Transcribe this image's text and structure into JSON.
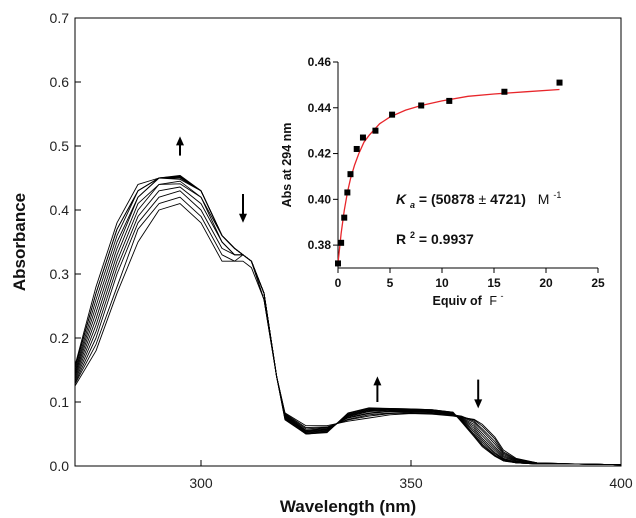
{
  "chart_data": [
    {
      "type": "line",
      "xlabel": "Wavelength (nm)",
      "ylabel": "Absorbance",
      "xlim": [
        270,
        400
      ],
      "ylim": [
        0.0,
        0.7
      ],
      "xticks": [
        300,
        350,
        400
      ],
      "xtick_labels": [
        "300",
        "350",
        "400"
      ],
      "yticks": [
        0.0,
        0.1,
        0.2,
        0.3,
        0.4,
        0.5,
        0.6,
        0.7
      ],
      "ytick_labels": [
        "0.0",
        "0.1",
        "0.2",
        "0.3",
        "0.4",
        "0.5",
        "0.6",
        "0.7"
      ],
      "grid": false,
      "line_color": "#000000",
      "x": [
        270,
        275,
        280,
        285,
        290,
        295,
        300,
        305,
        308,
        310,
        312,
        315,
        318,
        320,
        325,
        330,
        335,
        340,
        345,
        350,
        355,
        360,
        362,
        365,
        367,
        370,
        372,
        375,
        380,
        390,
        400
      ],
      "series": [
        {
          "values": [
            0.125,
            0.18,
            0.27,
            0.35,
            0.4,
            0.41,
            0.38,
            0.32,
            0.32,
            0.32,
            0.31,
            0.26,
            0.14,
            0.083,
            0.063,
            0.063,
            0.07,
            0.075,
            0.08,
            0.082,
            0.081,
            0.078,
            0.076,
            0.073,
            0.065,
            0.045,
            0.025,
            0.012,
            0.005,
            0.003,
            0.002
          ]
        },
        {
          "values": [
            0.128,
            0.19,
            0.28,
            0.37,
            0.41,
            0.42,
            0.39,
            0.33,
            0.32,
            0.33,
            0.32,
            0.26,
            0.14,
            0.082,
            0.06,
            0.061,
            0.072,
            0.078,
            0.082,
            0.083,
            0.082,
            0.079,
            0.077,
            0.072,
            0.062,
            0.042,
            0.022,
            0.011,
            0.005,
            0.003,
            0.002
          ]
        },
        {
          "values": [
            0.13,
            0.2,
            0.3,
            0.38,
            0.42,
            0.43,
            0.4,
            0.34,
            0.33,
            0.33,
            0.32,
            0.26,
            0.14,
            0.081,
            0.058,
            0.06,
            0.073,
            0.08,
            0.083,
            0.084,
            0.083,
            0.08,
            0.078,
            0.07,
            0.058,
            0.038,
            0.02,
            0.01,
            0.005,
            0.003,
            0.002
          ]
        },
        {
          "values": [
            0.133,
            0.21,
            0.31,
            0.39,
            0.43,
            0.436,
            0.41,
            0.35,
            0.33,
            0.33,
            0.32,
            0.27,
            0.14,
            0.08,
            0.056,
            0.059,
            0.075,
            0.082,
            0.085,
            0.085,
            0.084,
            0.08,
            0.077,
            0.068,
            0.055,
            0.034,
            0.018,
            0.009,
            0.004,
            0.003,
            0.002
          ]
        },
        {
          "values": [
            0.136,
            0.22,
            0.32,
            0.4,
            0.44,
            0.441,
            0.42,
            0.35,
            0.33,
            0.33,
            0.32,
            0.27,
            0.14,
            0.079,
            0.055,
            0.058,
            0.076,
            0.083,
            0.086,
            0.086,
            0.085,
            0.081,
            0.076,
            0.065,
            0.051,
            0.03,
            0.016,
            0.008,
            0.004,
            0.003,
            0.002
          ]
        },
        {
          "values": [
            0.139,
            0.23,
            0.33,
            0.41,
            0.44,
            0.445,
            0.42,
            0.36,
            0.34,
            0.33,
            0.32,
            0.27,
            0.14,
            0.078,
            0.054,
            0.057,
            0.077,
            0.085,
            0.087,
            0.086,
            0.085,
            0.081,
            0.075,
            0.062,
            0.047,
            0.027,
            0.014,
            0.007,
            0.004,
            0.003,
            0.002
          ]
        },
        {
          "values": [
            0.142,
            0.24,
            0.34,
            0.42,
            0.45,
            0.448,
            0.43,
            0.36,
            0.34,
            0.33,
            0.32,
            0.27,
            0.14,
            0.077,
            0.053,
            0.056,
            0.078,
            0.086,
            0.088,
            0.087,
            0.086,
            0.082,
            0.074,
            0.059,
            0.043,
            0.024,
            0.012,
            0.006,
            0.004,
            0.003,
            0.002
          ]
        },
        {
          "values": [
            0.145,
            0.25,
            0.35,
            0.42,
            0.45,
            0.45,
            0.43,
            0.36,
            0.34,
            0.33,
            0.32,
            0.27,
            0.14,
            0.076,
            0.052,
            0.055,
            0.079,
            0.087,
            0.088,
            0.087,
            0.086,
            0.082,
            0.073,
            0.056,
            0.04,
            0.021,
            0.011,
            0.006,
            0.003,
            0.003,
            0.002
          ]
        },
        {
          "values": [
            0.148,
            0.26,
            0.36,
            0.43,
            0.45,
            0.451,
            0.43,
            0.36,
            0.34,
            0.33,
            0.32,
            0.27,
            0.14,
            0.075,
            0.051,
            0.054,
            0.08,
            0.088,
            0.089,
            0.088,
            0.087,
            0.083,
            0.072,
            0.053,
            0.037,
            0.019,
            0.01,
            0.005,
            0.003,
            0.003,
            0.002
          ]
        },
        {
          "values": [
            0.152,
            0.27,
            0.37,
            0.43,
            0.45,
            0.452,
            0.43,
            0.36,
            0.34,
            0.33,
            0.32,
            0.27,
            0.14,
            0.074,
            0.05,
            0.053,
            0.081,
            0.089,
            0.089,
            0.088,
            0.087,
            0.083,
            0.071,
            0.05,
            0.034,
            0.017,
            0.009,
            0.005,
            0.003,
            0.003,
            0.002
          ]
        },
        {
          "values": [
            0.155,
            0.27,
            0.37,
            0.43,
            0.45,
            0.453,
            0.43,
            0.36,
            0.34,
            0.33,
            0.32,
            0.27,
            0.14,
            0.073,
            0.05,
            0.053,
            0.082,
            0.09,
            0.09,
            0.089,
            0.088,
            0.084,
            0.07,
            0.048,
            0.032,
            0.016,
            0.008,
            0.005,
            0.003,
            0.003,
            0.002
          ]
        },
        {
          "values": [
            0.157,
            0.28,
            0.38,
            0.44,
            0.45,
            0.454,
            0.43,
            0.36,
            0.34,
            0.33,
            0.32,
            0.27,
            0.14,
            0.072,
            0.05,
            0.052,
            0.083,
            0.091,
            0.09,
            0.089,
            0.088,
            0.084,
            0.069,
            0.046,
            0.03,
            0.015,
            0.008,
            0.005,
            0.003,
            0.003,
            0.002
          ]
        }
      ],
      "annotations": [
        {
          "type": "arrow",
          "direction": "up",
          "x": 295,
          "y_from": 0.485,
          "y_to": 0.515
        },
        {
          "type": "arrow",
          "direction": "down",
          "x": 310,
          "y_from": 0.425,
          "y_to": 0.38
        },
        {
          "type": "arrow",
          "direction": "up",
          "x": 342,
          "y_from": 0.1,
          "y_to": 0.14
        },
        {
          "type": "arrow",
          "direction": "down",
          "x": 366,
          "y_from": 0.135,
          "y_to": 0.09
        }
      ]
    },
    {
      "type": "scatter",
      "xlabel": "Equiv of",
      "xlabel_symbol": "F",
      "xlabel_superscript": "-",
      "ylabel": "Abs at 294 nm",
      "xlim": [
        0,
        25
      ],
      "ylim": [
        0.37,
        0.46
      ],
      "xticks": [
        0,
        5,
        10,
        15,
        20,
        25
      ],
      "xtick_labels": [
        "0",
        "5",
        "10",
        "15",
        "20",
        "25"
      ],
      "yticks": [
        0.38,
        0.4,
        0.42,
        0.44,
        0.46
      ],
      "ytick_labels": [
        "0.38",
        "0.40",
        "0.42",
        "0.44",
        "0.46"
      ],
      "grid": false,
      "marker_color": "#000000",
      "fit_color": "#e8262b",
      "x": [
        0,
        0.3,
        0.6,
        0.9,
        1.2,
        1.8,
        2.4,
        3.6,
        5.2,
        8.0,
        10.7,
        16.0,
        21.3
      ],
      "values": [
        0.372,
        0.381,
        0.392,
        0.403,
        0.411,
        0.422,
        0.427,
        0.43,
        0.437,
        0.441,
        0.443,
        0.447,
        0.451
      ],
      "fit": {
        "x": [
          0,
          0.3,
          0.6,
          0.9,
          1.2,
          1.6,
          2.0,
          2.5,
          3.0,
          4.0,
          5.0,
          6.5,
          8.0,
          10.0,
          12.5,
          15.0,
          18.0,
          21.3
        ],
        "values": [
          0.372,
          0.385,
          0.395,
          0.403,
          0.409,
          0.415,
          0.42,
          0.425,
          0.428,
          0.433,
          0.436,
          0.439,
          0.441,
          0.443,
          0.445,
          0.446,
          0.447,
          0.448
        ]
      },
      "annotations": [
        {
          "symbol": "K",
          "subscript": "a",
          "text": " = (50878",
          "pm": "±",
          "text2": "4721)",
          "unit": "M",
          "unit_superscript": "-1"
        },
        {
          "text": "R",
          "superscript": "2",
          "text2": " = 0.9937"
        }
      ]
    }
  ]
}
